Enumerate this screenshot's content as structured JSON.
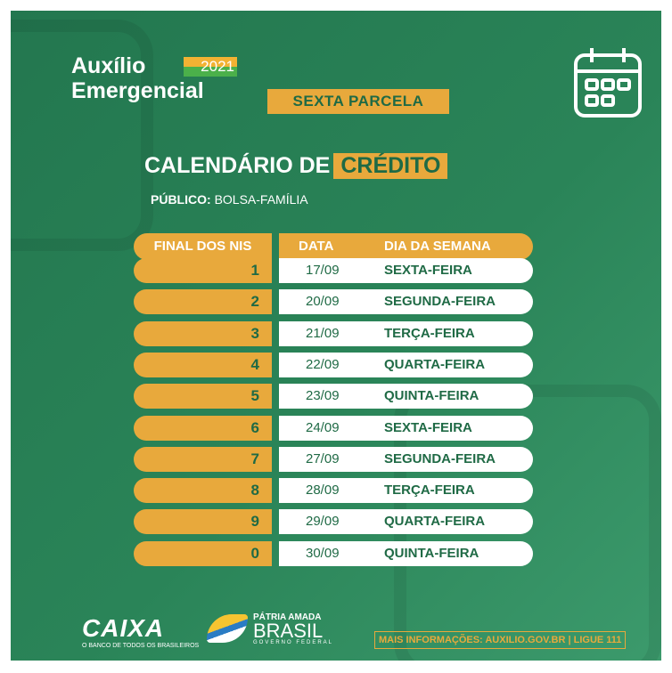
{
  "header": {
    "title_line1": "Auxílio",
    "title_line2": "Emergencial",
    "year": "2021",
    "installment": "SEXTA PARCELA"
  },
  "section": {
    "title": "CALENDÁRIO DE",
    "title_highlight": "CRÉDITO",
    "audience_label": "PÚBLICO:",
    "audience_value": "BOLSA-FAMÍLIA"
  },
  "table": {
    "columns": [
      "FINAL DOS NIS",
      "DATA",
      "DIA DA SEMANA"
    ],
    "rows": [
      {
        "nis": "1",
        "date": "17/09",
        "weekday": "SEXTA-FEIRA"
      },
      {
        "nis": "2",
        "date": "20/09",
        "weekday": "SEGUNDA-FEIRA"
      },
      {
        "nis": "3",
        "date": "21/09",
        "weekday": "TERÇA-FEIRA"
      },
      {
        "nis": "4",
        "date": "22/09",
        "weekday": "QUARTA-FEIRA"
      },
      {
        "nis": "5",
        "date": "23/09",
        "weekday": "QUINTA-FEIRA"
      },
      {
        "nis": "6",
        "date": "24/09",
        "weekday": "SEXTA-FEIRA"
      },
      {
        "nis": "7",
        "date": "27/09",
        "weekday": "SEGUNDA-FEIRA"
      },
      {
        "nis": "8",
        "date": "28/09",
        "weekday": "TERÇA-FEIRA"
      },
      {
        "nis": "9",
        "date": "29/09",
        "weekday": "QUARTA-FEIRA"
      },
      {
        "nis": "0",
        "date": "30/09",
        "weekday": "QUINTA-FEIRA"
      }
    ]
  },
  "footer": {
    "caixa": "CAIXA",
    "caixa_tagline": "O BANCO DE TODOS OS BRASILEIROS",
    "gov_line1": "PÁTRIA AMADA",
    "gov_line2": "BRASIL",
    "gov_line3": "GOVERNO FEDERAL",
    "info": "MAIS INFORMAÇÕES: AUXILIO.GOV.BR | LIGUE 111"
  },
  "colors": {
    "green": "#23774f",
    "gold": "#e8a93c",
    "text_green": "#1f6a45"
  },
  "icons": [
    "calendar-icon"
  ]
}
